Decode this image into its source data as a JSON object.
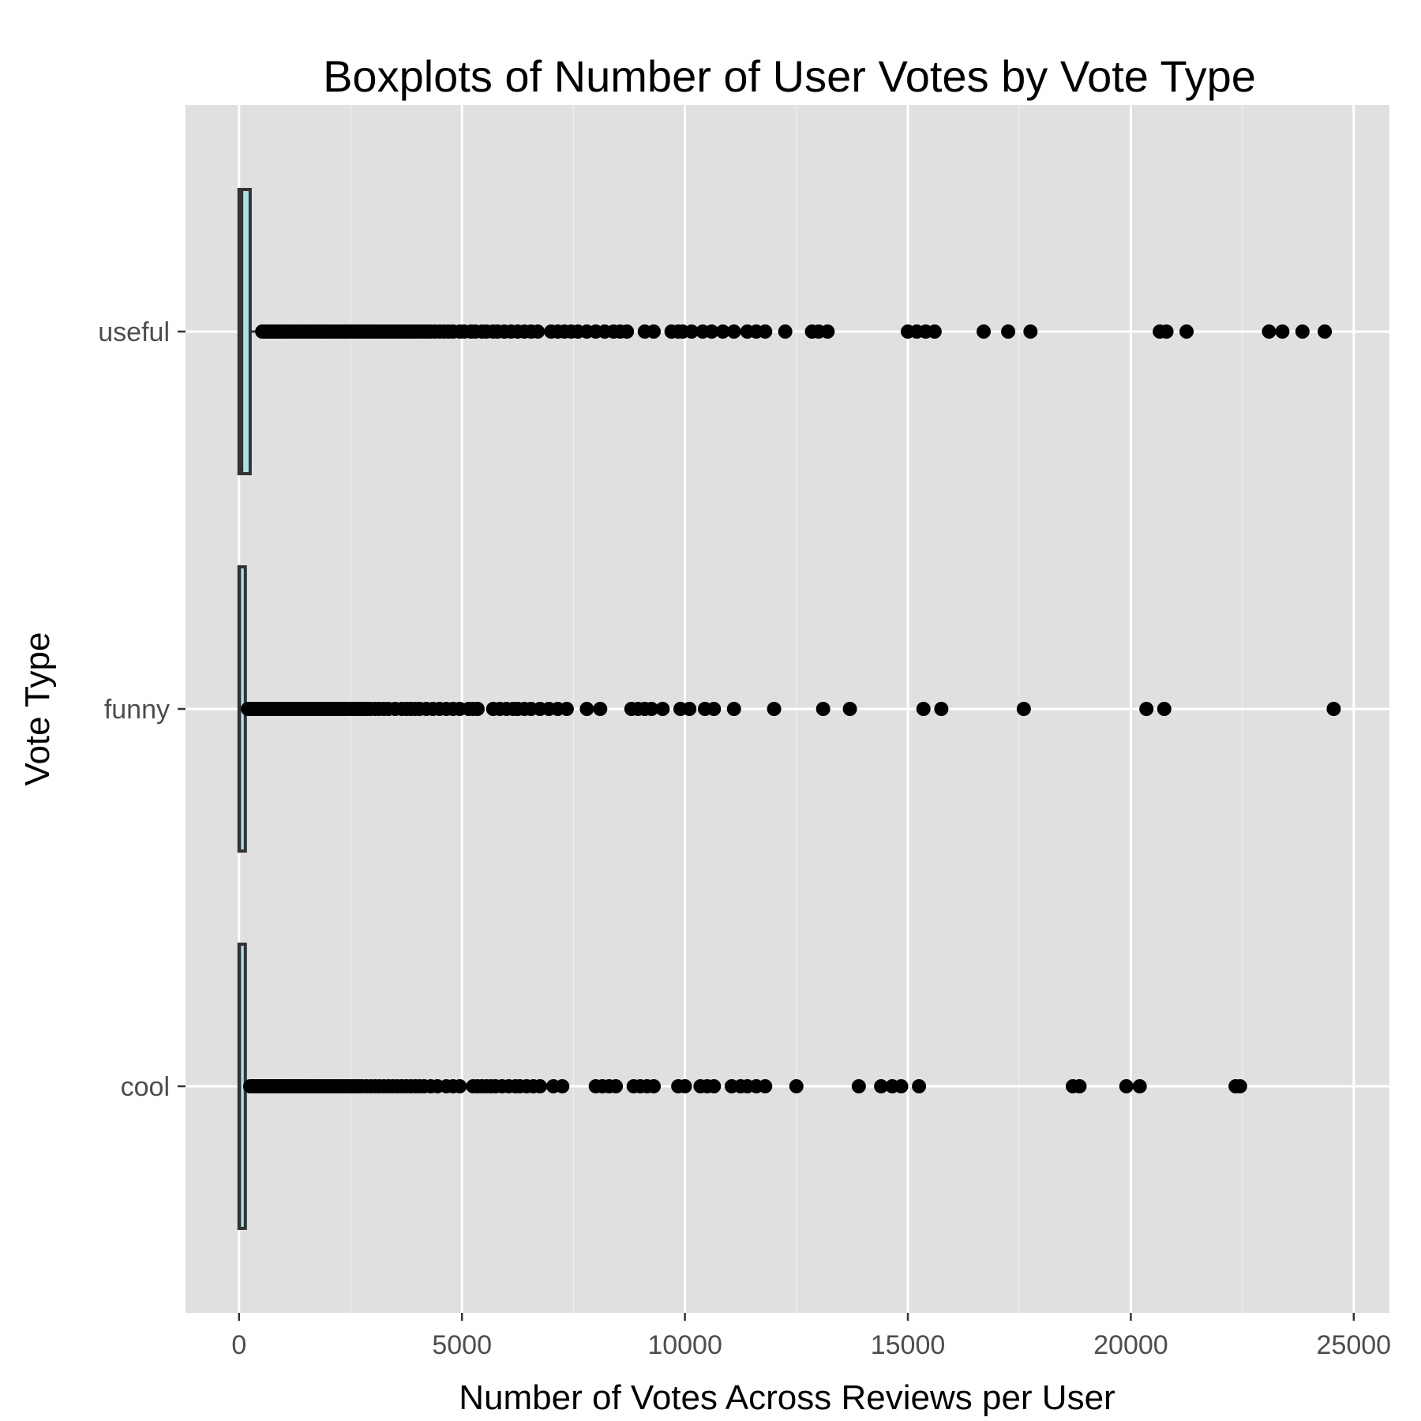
{
  "chart_data": {
    "type": "boxplot",
    "title": "Boxplots of Number of User Votes by Vote Type",
    "xlabel": "Number of Votes Across Reviews per User",
    "ylabel": "Vote Type",
    "xlim": [
      -1200,
      25800
    ],
    "xticks": [
      0,
      5000,
      10000,
      15000,
      20000,
      25000
    ],
    "xtick_labels": [
      "0",
      "5000",
      "10000",
      "15000",
      "20000",
      "25000"
    ],
    "categories": [
      "useful",
      "funny",
      "cool"
    ],
    "grid": true,
    "colors": {
      "panel": "#e0e0e0",
      "grid_major": "#ffffff",
      "grid_minor": "#ececec",
      "box_fill": "#a6e3e8",
      "box_stroke": "#333333",
      "points": "#000000",
      "tick_label": "#4d4d4d"
    },
    "series": [
      {
        "category": "useful",
        "box": {
          "q1": 0,
          "median": 60,
          "q3": 250,
          "whisker_low": 0,
          "whisker_high": 500
        },
        "outliers": [
          520,
          560,
          600,
          640,
          680,
          720,
          760,
          800,
          840,
          880,
          920,
          960,
          1000,
          1050,
          1100,
          1150,
          1200,
          1250,
          1300,
          1350,
          1400,
          1450,
          1500,
          1550,
          1600,
          1650,
          1700,
          1750,
          1800,
          1850,
          1900,
          1950,
          2000,
          2060,
          2120,
          2180,
          2240,
          2300,
          2360,
          2420,
          2480,
          2540,
          2600,
          2660,
          2720,
          2780,
          2840,
          2900,
          2960,
          3020,
          3080,
          3150,
          3220,
          3290,
          3360,
          3430,
          3500,
          3570,
          3640,
          3710,
          3780,
          3850,
          3920,
          3990,
          4070,
          4150,
          4230,
          4310,
          4400,
          4500,
          4600,
          4700,
          4800,
          4950,
          5050,
          5200,
          5300,
          5450,
          5550,
          5700,
          5800,
          5950,
          6100,
          6250,
          6400,
          6550,
          6700,
          7000,
          7150,
          7300,
          7450,
          7600,
          7800,
          8000,
          8200,
          8400,
          8550,
          8700,
          9100,
          9300,
          9700,
          9850,
          9950,
          10150,
          10400,
          10600,
          10850,
          11100,
          11400,
          11600,
          11800,
          12250,
          12850,
          13000,
          13200,
          15000,
          15200,
          15400,
          15600,
          16700,
          17250,
          17750,
          20650,
          20800,
          21250,
          23100,
          23400,
          23850,
          24350
        ]
      },
      {
        "category": "funny",
        "box": {
          "q1": 0,
          "median": 10,
          "q3": 80,
          "whisker_low": 0,
          "whisker_high": 180
        },
        "outliers": [
          200,
          240,
          280,
          320,
          360,
          400,
          440,
          480,
          520,
          560,
          600,
          640,
          680,
          720,
          760,
          800,
          840,
          880,
          920,
          960,
          1000,
          1050,
          1100,
          1150,
          1200,
          1250,
          1300,
          1350,
          1400,
          1450,
          1500,
          1560,
          1620,
          1680,
          1740,
          1800,
          1860,
          1920,
          1980,
          2040,
          2100,
          2170,
          2240,
          2310,
          2380,
          2450,
          2520,
          2590,
          2660,
          2730,
          2800,
          2870,
          2940,
          3050,
          3150,
          3250,
          3350,
          3500,
          3650,
          3750,
          3850,
          3950,
          4050,
          4200,
          4350,
          4500,
          4650,
          4800,
          4950,
          5150,
          5250,
          5350,
          5700,
          5850,
          6000,
          6150,
          6250,
          6400,
          6550,
          6750,
          6950,
          7150,
          7350,
          7800,
          8100,
          8800,
          8950,
          9100,
          9250,
          9500,
          9900,
          10100,
          10450,
          10650,
          11100,
          12000,
          13100,
          13700,
          15350,
          15750,
          17600,
          20350,
          20750,
          24550
        ]
      },
      {
        "category": "cool",
        "box": {
          "q1": 0,
          "median": 10,
          "q3": 80,
          "whisker_low": 0,
          "whisker_high": 220
        },
        "outliers": [
          250,
          290,
          330,
          370,
          410,
          450,
          490,
          530,
          570,
          610,
          650,
          690,
          730,
          770,
          810,
          850,
          890,
          930,
          970,
          1010,
          1060,
          1110,
          1160,
          1210,
          1260,
          1310,
          1360,
          1410,
          1460,
          1510,
          1570,
          1630,
          1690,
          1750,
          1810,
          1870,
          1930,
          1990,
          2050,
          2120,
          2190,
          2260,
          2330,
          2400,
          2470,
          2540,
          2610,
          2680,
          2750,
          2850,
          2950,
          3050,
          3150,
          3250,
          3350,
          3450,
          3550,
          3650,
          3750,
          3850,
          3950,
          4050,
          4150,
          4300,
          4450,
          4650,
          4800,
          4950,
          5250,
          5350,
          5450,
          5550,
          5650,
          5750,
          5900,
          6050,
          6200,
          6300,
          6450,
          6600,
          6750,
          7050,
          7250,
          8000,
          8150,
          8300,
          8450,
          8850,
          9000,
          9150,
          9300,
          9850,
          10000,
          10350,
          10500,
          10650,
          11050,
          11250,
          11400,
          11600,
          11800,
          12500,
          13900,
          14400,
          14650,
          14850,
          15250,
          18700,
          18850,
          19900,
          20200,
          22350,
          22450
        ]
      }
    ]
  }
}
